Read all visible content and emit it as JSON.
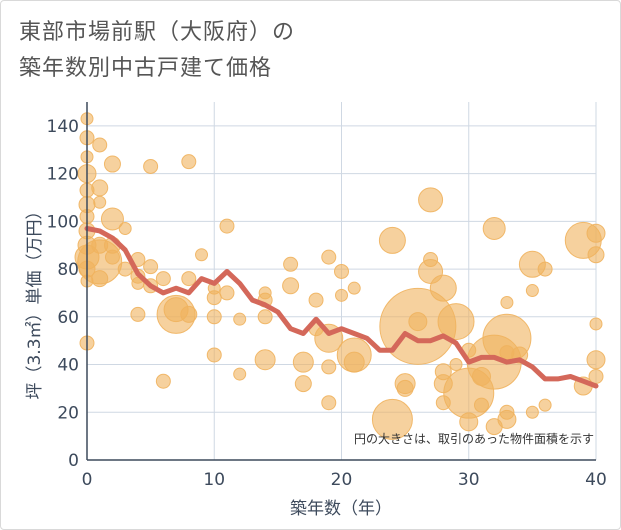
{
  "chart_data": {
    "type": "scatter",
    "title_line1": "東部市場前駅（大阪府）の",
    "title_line2": "築年数別中古戸建て価格",
    "xlabel": "築年数（年）",
    "ylabel": "坪（3.3㎡）単価（万円）",
    "xlim": [
      0,
      40
    ],
    "ylim": [
      0,
      150
    ],
    "xticks": [
      0,
      10,
      20,
      30,
      40
    ],
    "yticks": [
      0,
      20,
      40,
      60,
      80,
      100,
      120,
      140
    ],
    "annotation": "円の大きさは、取引のあった物件面積を示す",
    "colors": {
      "bubble": "#f0b25e",
      "line": "#d4685a",
      "grid": "#cfd8e3",
      "axis": "#3d4a5c"
    },
    "trend": {
      "x": [
        0,
        1,
        2,
        3,
        4,
        5,
        6,
        7,
        8,
        9,
        10,
        11,
        12,
        13,
        14,
        15,
        16,
        17,
        18,
        19,
        20,
        21,
        22,
        23,
        24,
        25,
        26,
        27,
        28,
        29,
        30,
        31,
        32,
        33,
        34,
        35,
        36,
        37,
        38,
        39,
        40
      ],
      "y": [
        97,
        96,
        93,
        88,
        78,
        73,
        70,
        72,
        70,
        76,
        74,
        79,
        74,
        67,
        65,
        62,
        55,
        53,
        59,
        53,
        55,
        53,
        51,
        46,
        46,
        53,
        50,
        50,
        52,
        49,
        41,
        43,
        43,
        41,
        42,
        39,
        34,
        34,
        35,
        33,
        31
      ]
    },
    "points": [
      {
        "x": 0,
        "y": 143,
        "r": 6
      },
      {
        "x": 0,
        "y": 135,
        "r": 7
      },
      {
        "x": 0,
        "y": 127,
        "r": 6
      },
      {
        "x": 0,
        "y": 120,
        "r": 9
      },
      {
        "x": 0,
        "y": 113,
        "r": 7
      },
      {
        "x": 0,
        "y": 107,
        "r": 8
      },
      {
        "x": 0,
        "y": 102,
        "r": 7
      },
      {
        "x": 0,
        "y": 96,
        "r": 8
      },
      {
        "x": 0,
        "y": 90,
        "r": 9
      },
      {
        "x": 0,
        "y": 85,
        "r": 12
      },
      {
        "x": 0,
        "y": 80,
        "r": 8
      },
      {
        "x": 0,
        "y": 75,
        "r": 6
      },
      {
        "x": 0,
        "y": 49,
        "r": 7
      },
      {
        "x": 1,
        "y": 132,
        "r": 7
      },
      {
        "x": 1,
        "y": 114,
        "r": 8
      },
      {
        "x": 1,
        "y": 108,
        "r": 6
      },
      {
        "x": 1,
        "y": 90,
        "r": 8
      },
      {
        "x": 1,
        "y": 83,
        "r": 22
      },
      {
        "x": 1,
        "y": 76,
        "r": 8
      },
      {
        "x": 2,
        "y": 124,
        "r": 8
      },
      {
        "x": 2,
        "y": 101,
        "r": 11
      },
      {
        "x": 2,
        "y": 90,
        "r": 8
      },
      {
        "x": 2,
        "y": 85,
        "r": 7
      },
      {
        "x": 3,
        "y": 97,
        "r": 6
      },
      {
        "x": 3,
        "y": 80,
        "r": 7
      },
      {
        "x": 4,
        "y": 84,
        "r": 7
      },
      {
        "x": 4,
        "y": 77,
        "r": 7
      },
      {
        "x": 4,
        "y": 74,
        "r": 6
      },
      {
        "x": 4,
        "y": 61,
        "r": 7
      },
      {
        "x": 5,
        "y": 123,
        "r": 7
      },
      {
        "x": 5,
        "y": 81,
        "r": 7
      },
      {
        "x": 5,
        "y": 73,
        "r": 7
      },
      {
        "x": 6,
        "y": 76,
        "r": 7
      },
      {
        "x": 6,
        "y": 33,
        "r": 7
      },
      {
        "x": 7,
        "y": 63,
        "r": 12
      },
      {
        "x": 7,
        "y": 61,
        "r": 19
      },
      {
        "x": 8,
        "y": 125,
        "r": 7
      },
      {
        "x": 8,
        "y": 76,
        "r": 7
      },
      {
        "x": 8,
        "y": 61,
        "r": 8
      },
      {
        "x": 9,
        "y": 86,
        "r": 6
      },
      {
        "x": 10,
        "y": 72,
        "r": 6
      },
      {
        "x": 10,
        "y": 68,
        "r": 7
      },
      {
        "x": 10,
        "y": 60,
        "r": 7
      },
      {
        "x": 10,
        "y": 44,
        "r": 7
      },
      {
        "x": 11,
        "y": 98,
        "r": 7
      },
      {
        "x": 11,
        "y": 70,
        "r": 7
      },
      {
        "x": 12,
        "y": 59,
        "r": 6
      },
      {
        "x": 12,
        "y": 36,
        "r": 6
      },
      {
        "x": 14,
        "y": 70,
        "r": 6
      },
      {
        "x": 14,
        "y": 67,
        "r": 7
      },
      {
        "x": 14,
        "y": 60,
        "r": 7
      },
      {
        "x": 14,
        "y": 42,
        "r": 10
      },
      {
        "x": 16,
        "y": 82,
        "r": 7
      },
      {
        "x": 16,
        "y": 73,
        "r": 8
      },
      {
        "x": 17,
        "y": 41,
        "r": 10
      },
      {
        "x": 17,
        "y": 32,
        "r": 8
      },
      {
        "x": 18,
        "y": 67,
        "r": 7
      },
      {
        "x": 18,
        "y": 55,
        "r": 7
      },
      {
        "x": 19,
        "y": 85,
        "r": 7
      },
      {
        "x": 19,
        "y": 51,
        "r": 14
      },
      {
        "x": 19,
        "y": 39,
        "r": 7
      },
      {
        "x": 19,
        "y": 24,
        "r": 7
      },
      {
        "x": 20,
        "y": 79,
        "r": 7
      },
      {
        "x": 20,
        "y": 69,
        "r": 6
      },
      {
        "x": 21,
        "y": 72,
        "r": 6
      },
      {
        "x": 21,
        "y": 44,
        "r": 17
      },
      {
        "x": 21,
        "y": 41,
        "r": 10
      },
      {
        "x": 24,
        "y": 92,
        "r": 13
      },
      {
        "x": 24,
        "y": 17,
        "r": 20
      },
      {
        "x": 25,
        "y": 32,
        "r": 10
      },
      {
        "x": 25,
        "y": 30,
        "r": 8
      },
      {
        "x": 26,
        "y": 56,
        "r": 38
      },
      {
        "x": 26,
        "y": 58,
        "r": 9
      },
      {
        "x": 27,
        "y": 109,
        "r": 12
      },
      {
        "x": 27,
        "y": 84,
        "r": 7
      },
      {
        "x": 27,
        "y": 79,
        "r": 12
      },
      {
        "x": 28,
        "y": 72,
        "r": 13
      },
      {
        "x": 28,
        "y": 37,
        "r": 8
      },
      {
        "x": 28,
        "y": 32,
        "r": 9
      },
      {
        "x": 28,
        "y": 24,
        "r": 7
      },
      {
        "x": 29,
        "y": 58,
        "r": 18
      },
      {
        "x": 29,
        "y": 40,
        "r": 6
      },
      {
        "x": 30,
        "y": 46,
        "r": 7
      },
      {
        "x": 30,
        "y": 28,
        "r": 25
      },
      {
        "x": 30,
        "y": 16,
        "r": 9
      },
      {
        "x": 31,
        "y": 35,
        "r": 9
      },
      {
        "x": 31,
        "y": 23,
        "r": 7
      },
      {
        "x": 32,
        "y": 97,
        "r": 11
      },
      {
        "x": 32,
        "y": 41,
        "r": 27
      },
      {
        "x": 32,
        "y": 14,
        "r": 8
      },
      {
        "x": 33,
        "y": 66,
        "r": 6
      },
      {
        "x": 33,
        "y": 51,
        "r": 24
      },
      {
        "x": 33,
        "y": 45,
        "r": 7
      },
      {
        "x": 33,
        "y": 20,
        "r": 7
      },
      {
        "x": 33,
        "y": 17,
        "r": 9
      },
      {
        "x": 34,
        "y": 44,
        "r": 8
      },
      {
        "x": 35,
        "y": 82,
        "r": 13
      },
      {
        "x": 35,
        "y": 71,
        "r": 6
      },
      {
        "x": 35,
        "y": 20,
        "r": 6
      },
      {
        "x": 36,
        "y": 80,
        "r": 7
      },
      {
        "x": 36,
        "y": 23,
        "r": 6
      },
      {
        "x": 39,
        "y": 92,
        "r": 18
      },
      {
        "x": 39,
        "y": 31,
        "r": 9
      },
      {
        "x": 40,
        "y": 95,
        "r": 9
      },
      {
        "x": 40,
        "y": 86,
        "r": 8
      },
      {
        "x": 40,
        "y": 57,
        "r": 6
      },
      {
        "x": 40,
        "y": 42,
        "r": 9
      },
      {
        "x": 40,
        "y": 35,
        "r": 7
      }
    ]
  }
}
